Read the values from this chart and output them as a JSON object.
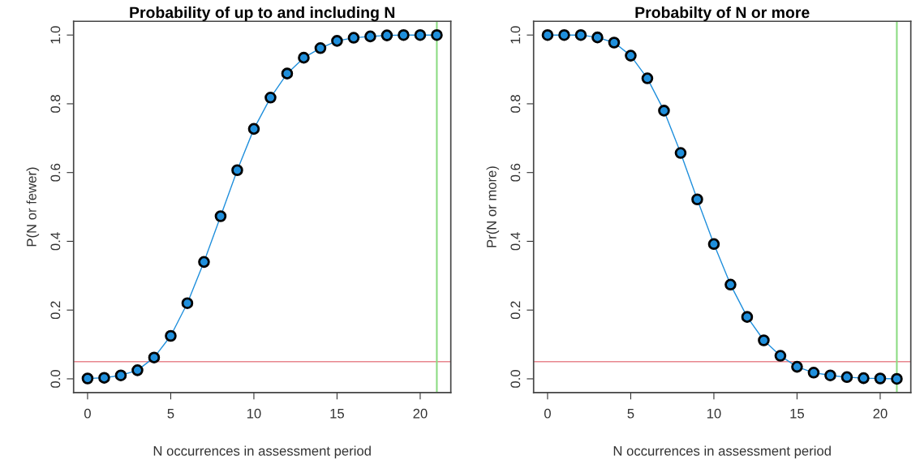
{
  "chart_data": [
    {
      "type": "line",
      "title": "Probability of up to and including N",
      "xlabel": "N occurrences in assessment period",
      "ylabel": "P(N or fewer)",
      "x": [
        0,
        1,
        2,
        3,
        4,
        5,
        6,
        7,
        8,
        9,
        10,
        11,
        12,
        13,
        14,
        15,
        16,
        17,
        18,
        19,
        20,
        21
      ],
      "series": [
        {
          "color": "#1f8fdc",
          "values": [
            0.001,
            0.003,
            0.01,
            0.025,
            0.062,
            0.125,
            0.22,
            0.34,
            0.473,
            0.607,
            0.727,
            0.818,
            0.888,
            0.934,
            0.962,
            0.983,
            0.992,
            0.996,
            0.999,
            1.0,
            1.0,
            1.0
          ]
        }
      ],
      "marker": "circle",
      "line_style": "solid",
      "xlim": [
        -0.84,
        21.84
      ],
      "xticks": [
        0,
        5,
        10,
        15,
        20
      ],
      "ylim": [
        -0.04,
        1.04
      ],
      "yticks": [
        {
          "value": 0,
          "label": "0.0"
        },
        {
          "value": 0.2,
          "label": "0.2"
        },
        {
          "value": 0.4,
          "label": "0.4"
        },
        {
          "value": 0.6,
          "label": "0.6"
        },
        {
          "value": 0.8,
          "label": "0.8"
        },
        {
          "value": 1,
          "label": "1.0"
        }
      ],
      "ref_lines": [
        {
          "axis": "y",
          "value": 0.05,
          "color": "#e8868e"
        },
        {
          "axis": "x",
          "value": 21,
          "color": "#8cdc82"
        }
      ],
      "grid": false
    },
    {
      "type": "line",
      "title": "Probabilty of N or more",
      "xlabel": "N occurrences in assessment period",
      "ylabel": "Pr(N or more)",
      "x": [
        0,
        1,
        2,
        3,
        4,
        5,
        6,
        7,
        8,
        9,
        10,
        11,
        12,
        13,
        14,
        15,
        16,
        17,
        18,
        19,
        20,
        21
      ],
      "series": [
        {
          "color": "#1f8fdc",
          "values": [
            1.0,
            1.0,
            1.0,
            0.993,
            0.978,
            0.94,
            0.874,
            0.78,
            0.657,
            0.522,
            0.392,
            0.274,
            0.18,
            0.112,
            0.067,
            0.035,
            0.018,
            0.01,
            0.005,
            0.002,
            0.001,
            0.0
          ]
        }
      ],
      "marker": "circle",
      "line_style": "solid",
      "xlim": [
        -0.84,
        21.84
      ],
      "xticks": [
        0,
        5,
        10,
        15,
        20
      ],
      "ylim": [
        -0.04,
        1.04
      ],
      "yticks": [
        {
          "value": 0,
          "label": "0.0"
        },
        {
          "value": 0.2,
          "label": "0.2"
        },
        {
          "value": 0.4,
          "label": "0.4"
        },
        {
          "value": 0.6,
          "label": "0.6"
        },
        {
          "value": 0.8,
          "label": "0.8"
        },
        {
          "value": 1,
          "label": "1.0"
        }
      ],
      "ref_lines": [
        {
          "axis": "y",
          "value": 0.05,
          "color": "#e8868e"
        },
        {
          "axis": "x",
          "value": 21,
          "color": "#8cdc82"
        }
      ],
      "grid": false
    }
  ]
}
